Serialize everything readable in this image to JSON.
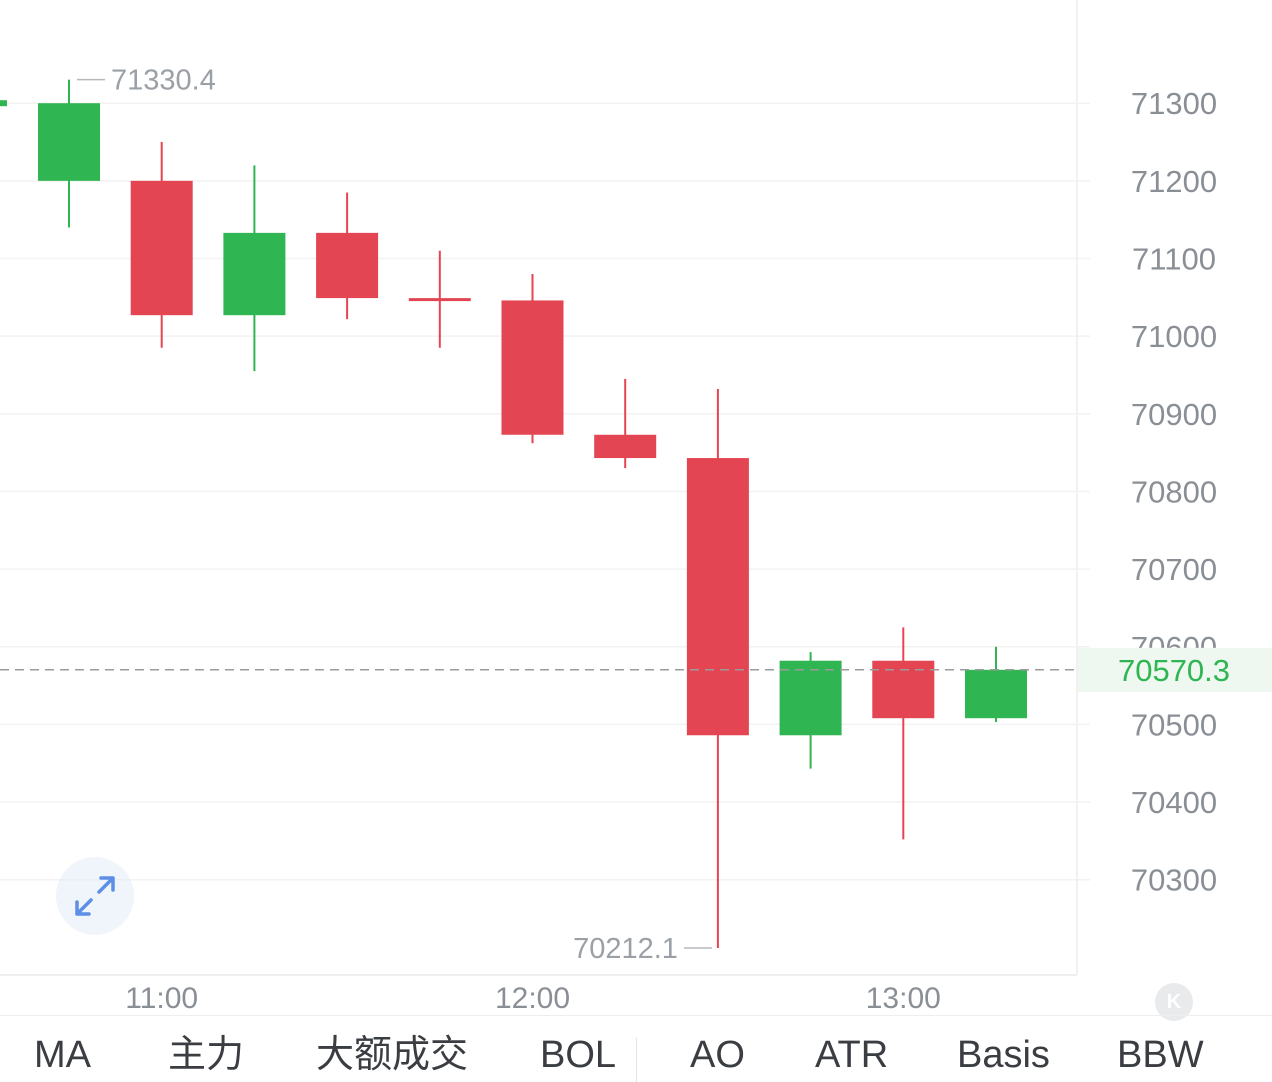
{
  "chart_data": {
    "type": "candlestick",
    "price_axis": {
      "ticks": [
        70300,
        70400,
        70500,
        70600,
        70700,
        70800,
        70900,
        71000,
        71100,
        71200,
        71300
      ],
      "range": [
        70170,
        71430
      ],
      "position": "right",
      "grid": true
    },
    "time_axis": {
      "ticks": [
        "11:00",
        "12:00",
        "13:00"
      ]
    },
    "candles": [
      {
        "open": 71200,
        "high": 71330.4,
        "low": 71140,
        "close": 71300
      },
      {
        "open": 71200,
        "high": 71250,
        "low": 70985,
        "close": 71027
      },
      {
        "open": 71027,
        "high": 71220,
        "low": 70955,
        "close": 71133
      },
      {
        "open": 71133,
        "high": 71185,
        "low": 71022,
        "close": 71049
      },
      {
        "open": 71049,
        "high": 71110,
        "low": 70985,
        "close": 71046
      },
      {
        "open": 71046,
        "high": 71080,
        "low": 70862,
        "close": 70873
      },
      {
        "open": 70873,
        "high": 70945,
        "low": 70830,
        "close": 70843
      },
      {
        "open": 70843,
        "high": 70932,
        "low": 70212.1,
        "close": 70486
      },
      {
        "open": 70486,
        "high": 70593,
        "low": 70443,
        "close": 70582
      },
      {
        "open": 70582,
        "high": 70625,
        "low": 70352,
        "close": 70508
      },
      {
        "open": 70508,
        "high": 70600,
        "low": 70503,
        "close": 70570.3
      }
    ],
    "colors": {
      "up": "#2fb551",
      "down": "#e34552"
    },
    "annotations": {
      "high": "71330.4",
      "low": "70212.1",
      "current": "70570.3"
    },
    "current_price": 70570.3,
    "axis_label_hidden_by_current_price": 70600
  },
  "toolbar": {
    "expand_icon": "expand-arrows-icon",
    "collapse_icon": "collapse-k-icon",
    "collapse_glyph": "K"
  },
  "indicators": [
    {
      "label": "MA"
    },
    {
      "label": "主力"
    },
    {
      "label": "大额成交"
    },
    {
      "label": "BOL"
    },
    {
      "label": "AO"
    },
    {
      "label": "ATR"
    },
    {
      "label": "Basis"
    },
    {
      "label": "BBW"
    }
  ]
}
